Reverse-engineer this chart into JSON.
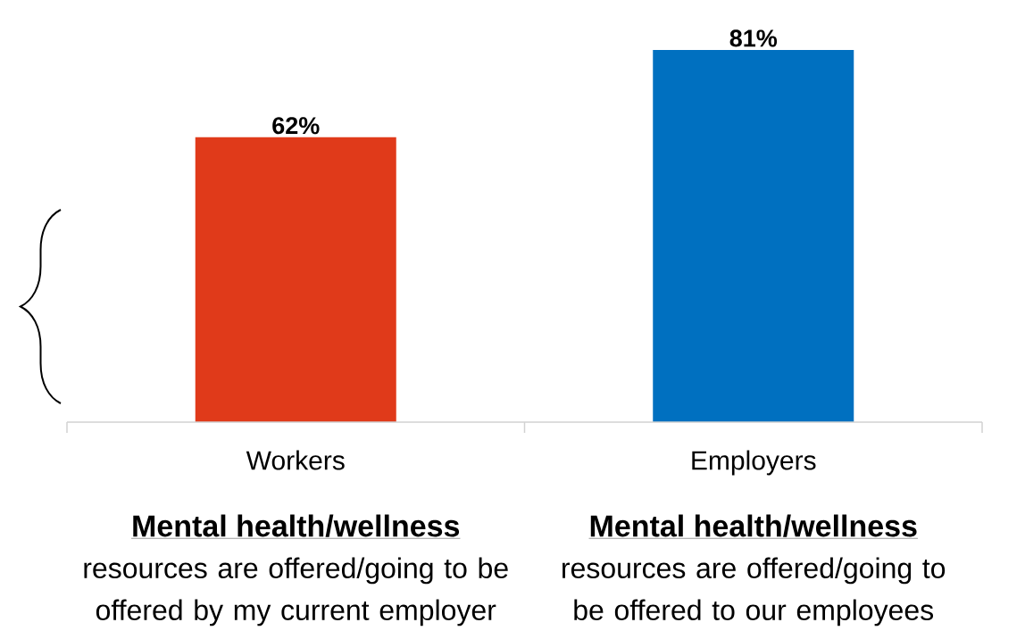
{
  "chart_data": {
    "type": "bar",
    "categories": [
      "Workers",
      "Employers"
    ],
    "values": [
      62,
      81
    ],
    "colors": [
      "#e03a1a",
      "#0070c0"
    ],
    "value_labels": [
      "62%",
      "81%"
    ],
    "annotations": [
      "Mental health/wellness",
      "resources are offered/going to be offered by my current employer",
      "Mental health/wellness",
      "resources are offered/going to be offered to our employees"
    ]
  }
}
